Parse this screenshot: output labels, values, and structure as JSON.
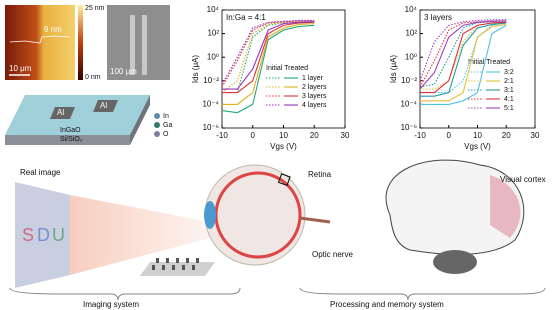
{
  "chart_data": [
    {
      "type": "line",
      "annotation": "In:Ga = 4:1",
      "legend_heading": "Initial Treated",
      "x_label": "Vgs (V)",
      "y_label": "Ids (μA)",
      "y_log": true,
      "x": [
        -10,
        -5,
        0,
        5,
        10,
        15,
        20
      ],
      "xlim": [
        -10,
        30
      ],
      "xticks": [
        -10,
        0,
        10,
        20,
        30
      ],
      "ylim": [
        1e-06,
        10000
      ],
      "yticks": [
        {
          "value": 1e-06,
          "label": "10⁻⁶"
        },
        {
          "value": 0.0001,
          "label": "10⁻⁴"
        },
        {
          "value": 0.01,
          "label": "10⁻²"
        },
        {
          "value": 1,
          "label": "10⁰"
        },
        {
          "value": 100,
          "label": "10²"
        },
        {
          "value": 10000,
          "label": "10⁴"
        }
      ],
      "series": [
        {
          "name": "1 layer",
          "color": "#1fa67f",
          "values": [
            3e-05,
            2e-05,
            0.0001,
            30,
            200,
            400,
            500
          ],
          "initial_values": [
            0.001,
            0.001,
            50,
            500,
            800,
            1000,
            1000
          ]
        },
        {
          "name": "2 layers",
          "color": "#d9b21a",
          "values": [
            0.0001,
            0.0001,
            0.001,
            50,
            300,
            600,
            700
          ],
          "initial_values": [
            0.001,
            0.01,
            100,
            600,
            900,
            1000,
            1000
          ]
        },
        {
          "name": "3 layers",
          "color": "#e0303a",
          "values": [
            0.001,
            0.001,
            0.01,
            100,
            500,
            800,
            900
          ],
          "initial_values": [
            0.003,
            0.5,
            200,
            800,
            1000,
            1200,
            1200
          ]
        },
        {
          "name": "4 layers",
          "color": "#9b30c0",
          "values": [
            0.002,
            0.002,
            0.1,
            200,
            700,
            900,
            1000
          ],
          "initial_values": [
            0.005,
            1,
            300,
            900,
            1100,
            1300,
            1300
          ]
        }
      ]
    },
    {
      "type": "line",
      "annotation": "3 layers",
      "legend_heading": "Initial Treated",
      "x_label": "Vgs (V)",
      "y_label": "Ids (μA)",
      "y_log": true,
      "x": [
        -10,
        -5,
        0,
        5,
        10,
        15,
        20
      ],
      "xlim": [
        -10,
        30
      ],
      "xticks": [
        -10,
        0,
        10,
        20,
        30
      ],
      "ylim": [
        1e-06,
        10000
      ],
      "yticks": [
        {
          "value": 1e-06,
          "label": "10⁻⁶"
        },
        {
          "value": 0.0001,
          "label": "10⁻⁴"
        },
        {
          "value": 0.01,
          "label": "10⁻²"
        },
        {
          "value": 1,
          "label": "10⁰"
        },
        {
          "value": 100,
          "label": "10²"
        },
        {
          "value": 10000,
          "label": "10⁴"
        }
      ],
      "series": [
        {
          "name": "3:2",
          "color": "#4cc3e6",
          "values": [
            0.0001,
            0.0001,
            0.0001,
            0.0002,
            0.001,
            100,
            500
          ],
          "initial_values": [
            0.001,
            0.001,
            0.001,
            0.01,
            50,
            500,
            800
          ]
        },
        {
          "name": "2:1",
          "color": "#e3c13c",
          "values": [
            0.0002,
            0.0002,
            0.0002,
            0.001,
            50,
            400,
            600
          ],
          "initial_values": [
            0.002,
            0.002,
            0.01,
            20,
            500,
            800,
            900
          ]
        },
        {
          "name": "3:1",
          "color": "#1f9c9c",
          "values": [
            0.0005,
            0.0005,
            0.001,
            10,
            300,
            600,
            800
          ],
          "initial_values": [
            0.003,
            0.005,
            1,
            300,
            800,
            1000,
            1000
          ]
        },
        {
          "name": "4:1",
          "color": "#e0303a",
          "values": [
            0.001,
            0.001,
            0.01,
            100,
            500,
            800,
            900
          ],
          "initial_values": [
            0.003,
            0.5,
            200,
            800,
            1000,
            1200,
            1200
          ]
        },
        {
          "name": "5:1",
          "color": "#a040c0",
          "values": [
            0.002,
            0.05,
            50,
            500,
            900,
            1100,
            1200
          ],
          "initial_values": [
            0.01,
            20,
            500,
            1000,
            1300,
            1500,
            1500
          ]
        }
      ]
    }
  ],
  "afm": {
    "height_max": "25 nm",
    "height_min": "0 nm",
    "step": "9 nm",
    "scale": "10 μm"
  },
  "sem": {
    "scale": "100 μm"
  },
  "device": {
    "electrode_1": "Al",
    "electrode_2": "Al",
    "channel": "InGaO",
    "substrate": "Si/SiO₂",
    "legend": [
      "In",
      "Ga",
      "O"
    ]
  },
  "vision": {
    "real_image": "Real image",
    "letters": [
      "S",
      "D",
      "U"
    ],
    "retina": "Retina",
    "optic_nerve": "Optic nerve",
    "visual_cortex": "Visual cortex",
    "imaging_system": "Imaging system",
    "processing_system": "Processing and memory system"
  }
}
